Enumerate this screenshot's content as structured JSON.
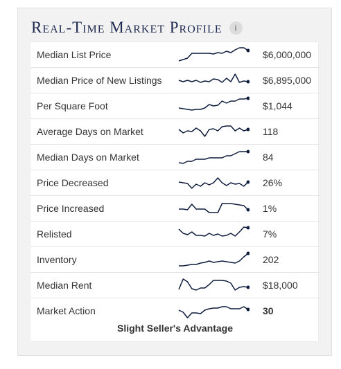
{
  "title": "Real-Time Market Profile",
  "info_icon": "info-icon",
  "colors": {
    "title": "#1f2a50",
    "line": "#0d1b3d"
  },
  "rows": [
    {
      "label": "Median List Price",
      "value": "$6,000,000",
      "bold": false,
      "trend": [
        20,
        18,
        16,
        9,
        9,
        9,
        9,
        9,
        10,
        8,
        9,
        6,
        8,
        4,
        1,
        1,
        5
      ]
    },
    {
      "label": "Median Price of New Listings",
      "value": "$6,895,000",
      "bold": false,
      "trend": [
        11,
        13,
        11,
        13,
        11,
        14,
        12,
        13,
        9,
        10,
        14,
        8,
        13,
        2,
        14,
        12,
        13
      ]
    },
    {
      "label": "Per Square Foot",
      "value": "$1,044",
      "bold": false,
      "trend": [
        14,
        15,
        16,
        17,
        16,
        16,
        14,
        9,
        11,
        10,
        4,
        7,
        4,
        4,
        1,
        1,
        0
      ]
    },
    {
      "label": "Average Days on Market",
      "value": "118",
      "bold": false,
      "trend": [
        8,
        13,
        10,
        11,
        6,
        10,
        18,
        8,
        7,
        10,
        4,
        3,
        3,
        10,
        6,
        10,
        8
      ]
    },
    {
      "label": "Median Days on Market",
      "value": "84",
      "bold": false,
      "trend": [
        19,
        20,
        17,
        17,
        14,
        14,
        14,
        12,
        12,
        12,
        12,
        9,
        9,
        6,
        3,
        3,
        3
      ]
    },
    {
      "label": "Price Decreased",
      "value": "26%",
      "bold": false,
      "trend": [
        10,
        11,
        12,
        19,
        13,
        16,
        11,
        14,
        11,
        4,
        11,
        15,
        11,
        13,
        12,
        16,
        10
      ]
    },
    {
      "label": "Price Increased",
      "value": "1%",
      "bold": false,
      "trend": [
        12,
        12,
        13,
        5,
        12,
        12,
        12,
        17,
        17,
        17,
        4,
        4,
        4,
        5,
        6,
        7,
        13
      ]
    },
    {
      "label": "Relisted",
      "value": "7%",
      "bold": false,
      "trend": [
        4,
        10,
        12,
        8,
        13,
        13,
        14,
        10,
        13,
        11,
        14,
        13,
        10,
        14,
        8,
        1,
        2
      ]
    },
    {
      "label": "Inventory",
      "value": "202",
      "bold": false,
      "trend": [
        20,
        20,
        19,
        18,
        18,
        16,
        15,
        13,
        15,
        14,
        13,
        14,
        15,
        16,
        13,
        7,
        2
      ]
    },
    {
      "label": "Median Rent",
      "value": "$18,000",
      "bold": false,
      "trend": [
        17,
        2,
        6,
        16,
        18,
        15,
        15,
        10,
        4,
        4,
        4,
        5,
        8,
        18,
        14,
        13,
        14
      ]
    },
    {
      "label": "Market Action",
      "value": "30",
      "bold": true,
      "trend": [
        10,
        13,
        21,
        14,
        14,
        15,
        10,
        8,
        7,
        7,
        5,
        5,
        8,
        8,
        8,
        5,
        9
      ]
    }
  ],
  "footer": "Slight Seller's Advantage"
}
